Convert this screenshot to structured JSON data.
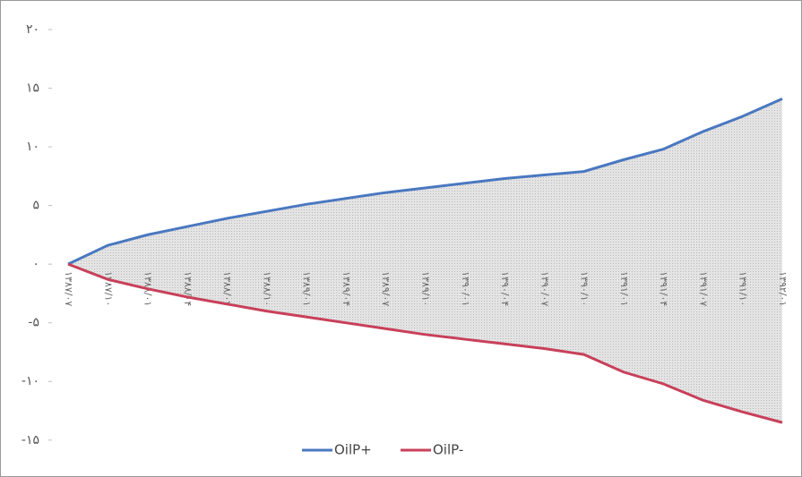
{
  "chart_data": {
    "type": "line",
    "categories": [
      "۱۳۸۷/۰۷",
      "۱۳۸۷/۱۰",
      "۱۳۸۸/۰۱",
      "۱۳۸۸/۰۴",
      "۱۳۸۸/۰۷",
      "۱۳۸۸/۱۰",
      "۱۳۸۹/۰۱",
      "۱۳۸۹/۰۴",
      "۱۳۸۹/۰۷",
      "۱۳۸۹/۱۰",
      "۱۳۹۰/۰۱",
      "۱۳۹۰/۰۴",
      "۱۳۹۰/۰۷",
      "۱۳۹۰/۱۰",
      "۱۳۹۱/۰۱",
      "۱۳۹۱/۰۴",
      "۱۳۹۱/۰۷",
      "۱۳۹۱/۱۰",
      "۱۳۹۲/۰۱"
    ],
    "series": [
      {
        "name": "OilP+",
        "color": "#4a78c0",
        "values": [
          0,
          1.6,
          2.5,
          3.2,
          3.9,
          4.5,
          5.1,
          5.6,
          6.1,
          6.5,
          6.9,
          7.3,
          7.6,
          7.9,
          8.9,
          9.8,
          11.3,
          12.6,
          14.1
        ]
      },
      {
        "name": "OilP-",
        "color": "#c8405a",
        "values": [
          0,
          -1.3,
          -2.1,
          -2.8,
          -3.4,
          -4.0,
          -4.5,
          -5.0,
          -5.5,
          -6.0,
          -6.4,
          -6.8,
          -7.2,
          -7.7,
          -9.2,
          -10.2,
          -11.6,
          -12.6,
          -13.5
        ]
      }
    ],
    "ylim": [
      -17,
      20
    ],
    "yticks": [
      {
        "value": 20,
        "label": "۲۰"
      },
      {
        "value": 15,
        "label": "۱۵"
      },
      {
        "value": 10,
        "label": "۱۰"
      },
      {
        "value": 5,
        "label": "۵"
      },
      {
        "value": 0,
        "label": "۰"
      },
      {
        "value": -5,
        "label": "-۵"
      },
      {
        "value": -10,
        "label": "-۱۰"
      },
      {
        "value": -15,
        "label": "-۱۵"
      }
    ],
    "legend": "bottom"
  }
}
